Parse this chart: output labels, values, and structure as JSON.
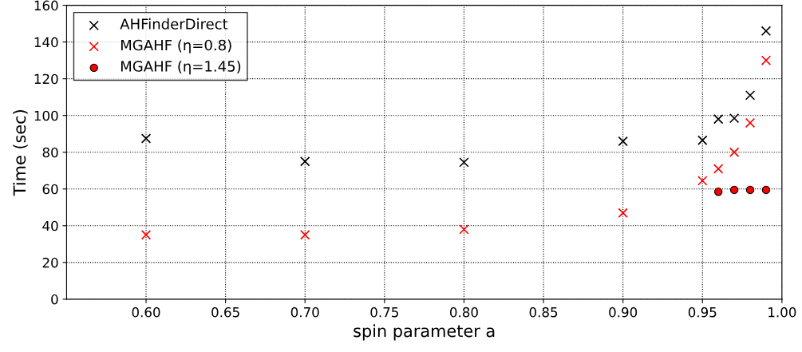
{
  "chart_data": {
    "type": "scatter",
    "xlabel": "spin parameter a",
    "ylabel": "Time (sec)",
    "xlim": [
      0.55,
      1.0
    ],
    "xticks": [
      {
        "value": 0.6,
        "label": "0.60"
      },
      {
        "value": 0.65,
        "label": "0.65"
      },
      {
        "value": 0.7,
        "label": "0.70"
      },
      {
        "value": 0.75,
        "label": "0.75"
      },
      {
        "value": 0.8,
        "label": "0.80"
      },
      {
        "value": 0.85,
        "label": "0.85"
      },
      {
        "value": 0.9,
        "label": "0.90"
      },
      {
        "value": 0.95,
        "label": "0.95"
      },
      {
        "value": 1.0,
        "label": "1.00"
      }
    ],
    "ylim": [
      0,
      160
    ],
    "yticks": [
      0,
      20,
      40,
      60,
      80,
      100,
      120,
      140,
      160
    ],
    "grid": true,
    "legend": "top left",
    "series": [
      {
        "name": "AHFinderDirect",
        "color": "#000000",
        "marker": "cross",
        "x": [
          0.6,
          0.7,
          0.8,
          0.9,
          0.95,
          0.96,
          0.97,
          0.98,
          0.99
        ],
        "values": [
          87.5,
          75,
          74.5,
          86,
          86.5,
          98,
          98.5,
          111,
          146
        ]
      },
      {
        "name": "MGAHF (η=0.8)",
        "color": "#ff0000",
        "marker": "cross",
        "x": [
          0.6,
          0.7,
          0.8,
          0.9,
          0.95,
          0.96,
          0.97,
          0.98,
          0.99
        ],
        "values": [
          35,
          35,
          38,
          47,
          64.5,
          71,
          80,
          96,
          130
        ]
      },
      {
        "name": "MGAHF (η=1.45)",
        "color": "#ff0000",
        "marker": "circle",
        "x": [
          0.96,
          0.97,
          0.98,
          0.99
        ],
        "values": [
          58.5,
          59.5,
          59.5,
          59.5
        ]
      }
    ]
  }
}
